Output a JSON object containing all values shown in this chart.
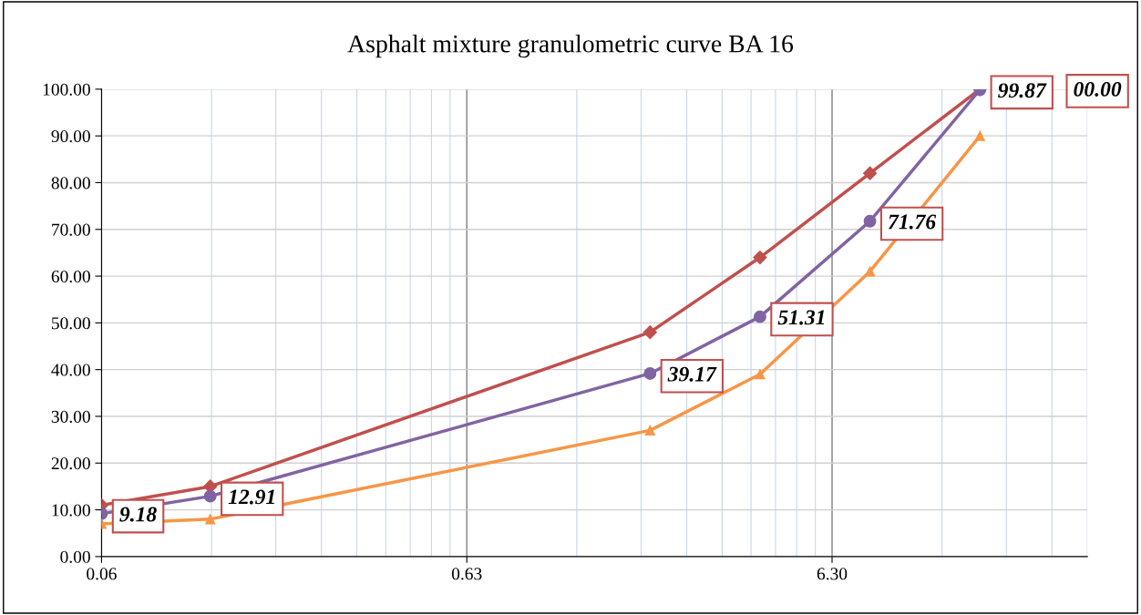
{
  "chart_data": {
    "type": "line",
    "title": "Asphalt mixture granulometric curve BA 16",
    "x": [
      0.063,
      0.125,
      2,
      4,
      8,
      16
    ],
    "series": [
      {
        "color": "#c0504d",
        "marker": "diamond",
        "values": [
          11,
          15,
          48,
          64,
          82,
          100
        ]
      },
      {
        "color": "#8064a2",
        "marker": "circle",
        "values": [
          9.18,
          12.91,
          39.17,
          51.31,
          71.76,
          99.87
        ],
        "value_labels": [
          "9.18",
          "12.91",
          "39.17",
          "51.31",
          "71.76",
          "99.87"
        ]
      },
      {
        "color": "#f79646",
        "marker": "triangle",
        "values": [
          7,
          8,
          27,
          39,
          61,
          90
        ]
      }
    ],
    "annotations": [
      "00.00"
    ],
    "log": "x",
    "xlim": [
      0.063,
      31.5
    ],
    "xticks": [
      {
        "value": 0.063,
        "label": "0.06"
      },
      {
        "value": 0.63,
        "label": "0.63"
      },
      {
        "value": 6.3,
        "label": "6.30"
      }
    ],
    "ylim": [
      0,
      100
    ],
    "yticks": [
      {
        "value": 0,
        "label": "0.00"
      },
      {
        "value": 10,
        "label": "10.00"
      },
      {
        "value": 20,
        "label": "20.00"
      },
      {
        "value": 30,
        "label": "30.00"
      },
      {
        "value": 40,
        "label": "40.00"
      },
      {
        "value": 50,
        "label": "50.00"
      },
      {
        "value": 60,
        "label": "60.00"
      },
      {
        "value": 70,
        "label": "70.00"
      },
      {
        "value": 80,
        "label": "80.00"
      },
      {
        "value": 90,
        "label": "90.00"
      },
      {
        "value": 100,
        "label": "100.00"
      }
    ],
    "grid": true,
    "line_style": "solid"
  }
}
